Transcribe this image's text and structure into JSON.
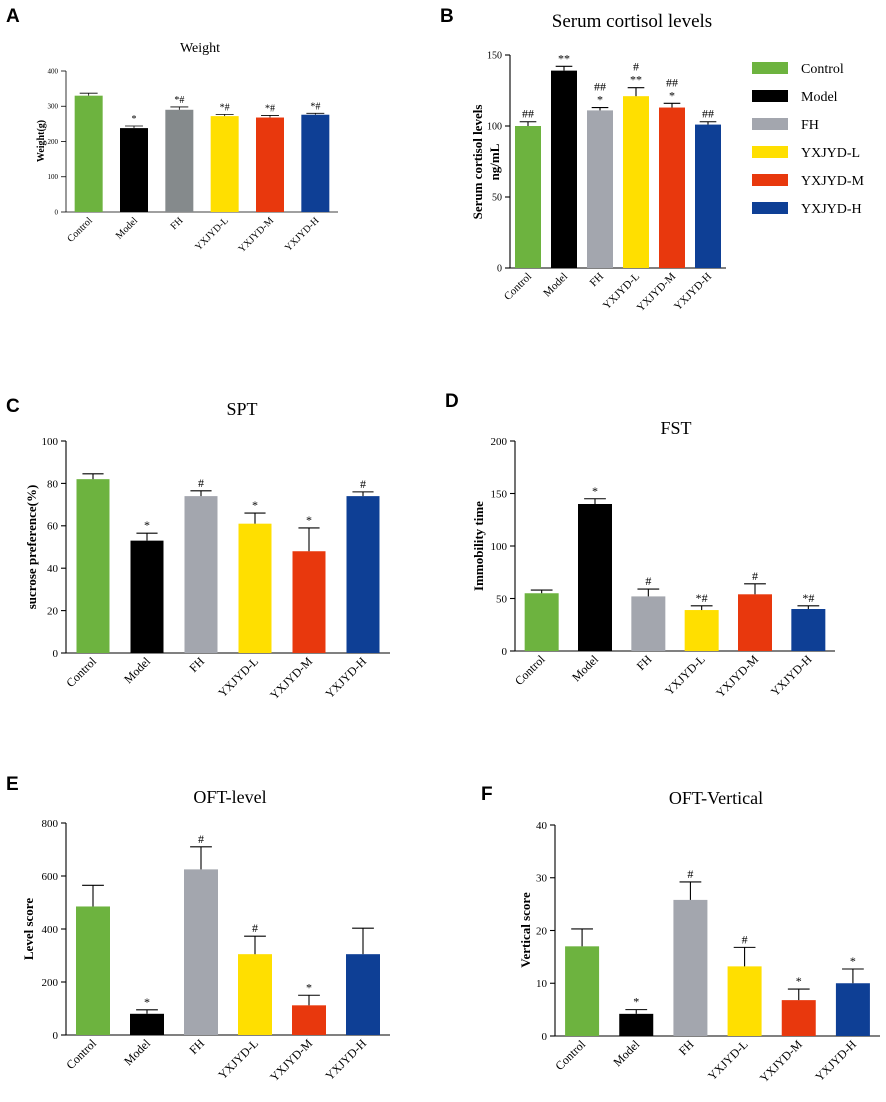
{
  "colors": {
    "Control": "#6db33f",
    "Model": "#000000",
    "FH": "#a3a6ae",
    "FH_A": "#858a8c",
    "YXJYD-L": "#ffdf00",
    "YXJYD-M": "#e8380d",
    "YXJYD-H": "#0e3f95"
  },
  "legend": {
    "items": [
      "Control",
      "Model",
      "FH",
      "YXJYD-L",
      "YXJYD-M",
      "YXJYD-H"
    ]
  },
  "chart_data": [
    {
      "id": "A",
      "panel_label": "A",
      "type": "bar",
      "title": "Weight",
      "ylabel": "Weight(g)",
      "xlabel": "",
      "categories": [
        "Control",
        "Model",
        "FH",
        "YXJYD-L",
        "YXJYD-M",
        "YXJYD-H"
      ],
      "values": [
        330,
        238,
        290,
        272,
        268,
        276
      ],
      "errors": [
        7,
        6,
        8,
        5,
        6,
        4
      ],
      "annotations": [
        "",
        "*",
        "*#",
        "*#",
        "*#",
        "*#"
      ],
      "ylim": [
        0,
        400
      ],
      "yticks": [
        0,
        100,
        200,
        300,
        400
      ]
    },
    {
      "id": "B",
      "panel_label": "B",
      "type": "bar",
      "title": "Serum cortisol levels",
      "ylabel": "Serum cortisol levels ng/mL",
      "xlabel": "",
      "categories": [
        "Control",
        "Model",
        "FH",
        "YXJYD-L",
        "YXJYD-M",
        "YXJYD-H"
      ],
      "values": [
        100,
        139,
        111,
        121,
        113,
        101
      ],
      "errors": [
        3,
        3,
        2,
        6,
        3,
        2
      ],
      "annotations": [
        "##",
        "**",
        "##\n*",
        "#\n**",
        "##\n*",
        "##"
      ],
      "ylim": [
        0,
        150
      ],
      "yticks": [
        0,
        50,
        100,
        150
      ]
    },
    {
      "id": "C",
      "panel_label": "C",
      "type": "bar",
      "title": "SPT",
      "ylabel": "sucrose preference(%)",
      "xlabel": "",
      "categories": [
        "Control",
        "Model",
        "FH",
        "YXJYD-L",
        "YXJYD-M",
        "YXJYD-H"
      ],
      "values": [
        82,
        53,
        74,
        61,
        48,
        74
      ],
      "errors": [
        2.5,
        3.5,
        2.5,
        5,
        11,
        2
      ],
      "annotations": [
        "",
        "*",
        "#",
        "*",
        "*",
        "#"
      ],
      "ylim": [
        0,
        100
      ],
      "yticks": [
        0,
        20,
        40,
        60,
        80,
        100
      ]
    },
    {
      "id": "D",
      "panel_label": "D",
      "type": "bar",
      "title": "FST",
      "ylabel": "Immobility time",
      "xlabel": "",
      "categories": [
        "Control",
        "Model",
        "FH",
        "YXJYD-L",
        "YXJYD-M",
        "YXJYD-H"
      ],
      "values": [
        55,
        140,
        52,
        39,
        54,
        40
      ],
      "errors": [
        3,
        5,
        7,
        4,
        10,
        3
      ],
      "annotations": [
        "",
        "*",
        "#",
        "*#",
        "#",
        "*#"
      ],
      "ylim": [
        0,
        200
      ],
      "yticks": [
        0,
        50,
        100,
        150,
        200
      ]
    },
    {
      "id": "E",
      "panel_label": "E",
      "type": "bar",
      "title": "OFT-level",
      "ylabel": "Level score",
      "xlabel": "",
      "categories": [
        "Control",
        "Model",
        "FH",
        "YXJYD-L",
        "YXJYD-M",
        "YXJYD-H"
      ],
      "values": [
        485,
        80,
        625,
        305,
        112,
        305
      ],
      "errors": [
        80,
        15,
        85,
        68,
        38,
        98
      ],
      "annotations": [
        "",
        "*",
        "#",
        "#",
        "*",
        ""
      ],
      "ylim": [
        0,
        800
      ],
      "yticks": [
        0,
        200,
        400,
        600,
        800
      ]
    },
    {
      "id": "F",
      "panel_label": "F",
      "type": "bar",
      "title": "OFT-Vertical",
      "ylabel": "Vertical score",
      "xlabel": "",
      "categories": [
        "Control",
        "Model",
        "FH",
        "YXJYD-L",
        "YXJYD-M",
        "YXJYD-H"
      ],
      "values": [
        17,
        4.2,
        25.8,
        13.2,
        6.8,
        10
      ],
      "errors": [
        3.3,
        0.8,
        3.4,
        3.6,
        2.1,
        2.7
      ],
      "annotations": [
        "",
        "*",
        "#",
        "#",
        "*",
        "*"
      ],
      "ylim": [
        0,
        40
      ],
      "yticks": [
        0,
        10,
        20,
        30,
        40
      ]
    }
  ]
}
